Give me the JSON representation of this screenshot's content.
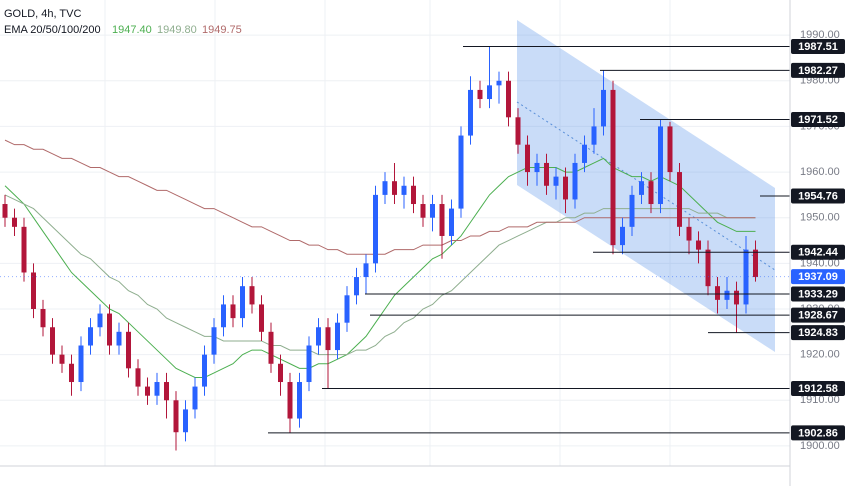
{
  "chart_data": {
    "type": "candlestick",
    "title": "GOLD, 4h, TVC",
    "indicator": "EMA 20/50/100/200",
    "indicator_values": [
      1947.4,
      1949.8,
      1949.75
    ],
    "indicator_value_labels": [
      "1947.40",
      "1949.80",
      "1949.75"
    ],
    "ylim": [
      1895.6,
      1997.7
    ],
    "yticks": [
      {
        "value": 1900,
        "label": "1900.00"
      },
      {
        "value": 1910,
        "label": "1910.00"
      },
      {
        "value": 1920,
        "label": "1920.00"
      },
      {
        "value": 1930,
        "label": "1930.00"
      },
      {
        "value": 1940,
        "label": "1940.00"
      },
      {
        "value": 1950,
        "label": "1950.00"
      },
      {
        "value": 1960,
        "label": "1960.00"
      },
      {
        "value": 1970,
        "label": "1970.00"
      },
      {
        "value": 1980,
        "label": "1980.00"
      },
      {
        "value": 1990,
        "label": "1990.00"
      }
    ],
    "grid": true,
    "up_color": "#2962ff",
    "down_color": "#b2163a",
    "open": [
      1953,
      1950,
      1948,
      1938,
      1930,
      1926,
      1920,
      1918,
      1914,
      1922,
      1926,
      1929,
      1922,
      1925,
      1917,
      1913,
      1911,
      1914,
      1910,
      1903,
      1908,
      1913,
      1920,
      1926,
      1931,
      1928,
      1935,
      1931,
      1925,
      1918,
      1914,
      1906,
      1914,
      1922,
      1926,
      1921,
      1927,
      1933,
      1937,
      1940,
      1955,
      1958,
      1955,
      1957,
      1953,
      1950,
      1953,
      1946,
      1952,
      1968,
      1978,
      1976,
      1979,
      1980,
      1972,
      1966,
      1960,
      1962,
      1957,
      1959,
      1954,
      1962,
      1966,
      1970,
      1978,
      1944,
      1948,
      1955,
      1958,
      1953,
      1970,
      1960,
      1948,
      1945,
      1943,
      1935,
      1932,
      1934,
      1931,
      1943
    ],
    "high": [
      1955,
      1952,
      1950,
      1940,
      1932,
      1928,
      1922,
      1920,
      1924,
      1928,
      1931,
      1931,
      1927,
      1927,
      1919,
      1915,
      1916,
      1916,
      1912,
      1910,
      1915,
      1922,
      1928,
      1933,
      1933,
      1937,
      1937,
      1933,
      1927,
      1920,
      1916,
      1916,
      1924,
      1928,
      1928,
      1929,
      1935,
      1939,
      1942,
      1957,
      1960,
      1962,
      1959,
      1959,
      1955,
      1955,
      1955,
      1954,
      1970,
      1981,
      1980,
      1987.5,
      1982,
      1982,
      1974,
      1968,
      1964,
      1964,
      1961,
      1961,
      1964,
      1968,
      1974,
      1982.3,
      1980,
      1950,
      1957,
      1960,
      1960,
      1971.5,
      1971,
      1962,
      1950,
      1947,
      1945,
      1937,
      1937,
      1936,
      1946,
      1945
    ],
    "low": [
      1948,
      1946,
      1936,
      1928,
      1924,
      1918,
      1916,
      1911,
      1912,
      1920,
      1924,
      1920,
      1920,
      1915,
      1911,
      1909,
      1909,
      1906,
      1899,
      1901,
      1906,
      1911,
      1918,
      1924,
      1926,
      1926,
      1929,
      1923,
      1916,
      1911,
      1902.9,
      1904,
      1912,
      1920,
      1912.6,
      1919,
      1925,
      1931,
      1933.3,
      1938,
      1953,
      1953,
      1952,
      1951,
      1948,
      1947,
      1941,
      1944,
      1950,
      1966,
      1974,
      1974,
      1975,
      1970,
      1964,
      1957,
      1957,
      1955,
      1954,
      1951,
      1952,
      1960,
      1964,
      1968,
      1942,
      1942,
      1946,
      1953,
      1951,
      1951,
      1958,
      1946,
      1942,
      1940,
      1933,
      1929,
      1930,
      1924.8,
      1929,
      1936
    ],
    "close": [
      1950,
      1948,
      1938,
      1930,
      1926,
      1920,
      1918,
      1914,
      1922,
      1926,
      1929,
      1922,
      1925,
      1917,
      1913,
      1911,
      1914,
      1910,
      1903,
      1908,
      1913,
      1920,
      1926,
      1931,
      1928,
      1935,
      1931,
      1925,
      1918,
      1914,
      1906,
      1914,
      1922,
      1926,
      1921,
      1927,
      1933,
      1937,
      1940,
      1955,
      1958,
      1955,
      1957,
      1953,
      1950,
      1953,
      1946,
      1952,
      1968,
      1978,
      1976,
      1979,
      1980,
      1972,
      1966,
      1960,
      1962,
      1957,
      1959,
      1954,
      1962,
      1966,
      1970,
      1978,
      1944,
      1948,
      1955,
      1958,
      1953,
      1970,
      1960,
      1948,
      1945,
      1943,
      1935,
      1932,
      1934,
      1931,
      1943,
      1937
    ],
    "ema": [
      {
        "color": "#4caf50",
        "values": [
          1957,
          1955,
          1953,
          1950,
          1947,
          1944,
          1941,
          1938,
          1936,
          1934,
          1932,
          1930,
          1929,
          1927,
          1925,
          1923,
          1921,
          1919,
          1917,
          1916,
          1915,
          1915,
          1916,
          1917,
          1918,
          1920,
          1921,
          1921,
          1920,
          1919,
          1918,
          1917,
          1917,
          1918,
          1918,
          1919,
          1920,
          1922,
          1924,
          1927,
          1930,
          1933,
          1935,
          1937,
          1939,
          1941,
          1942,
          1944,
          1946,
          1949,
          1952,
          1955,
          1957,
          1959,
          1960,
          1961,
          1961,
          1961,
          1961,
          1960,
          1960,
          1961,
          1962,
          1963,
          1961,
          1960,
          1959,
          1959,
          1958,
          1959,
          1958,
          1957,
          1955,
          1953,
          1951,
          1949,
          1948,
          1947,
          1947,
          1947
        ]
      },
      {
        "color": "#8fae8f",
        "values": [
          1955,
          1954,
          1953,
          1952,
          1950,
          1948,
          1946,
          1944,
          1942,
          1941,
          1939,
          1937,
          1936,
          1934,
          1933,
          1931,
          1930,
          1928,
          1927,
          1926,
          1925,
          1924,
          1924,
          1923,
          1923,
          1923,
          1923,
          1923,
          1922,
          1922,
          1921,
          1921,
          1921,
          1920,
          1920,
          1920,
          1920,
          1921,
          1921,
          1922,
          1924,
          1925,
          1927,
          1928,
          1930,
          1931,
          1933,
          1934,
          1936,
          1938,
          1940,
          1942,
          1944,
          1945,
          1946,
          1947,
          1948,
          1949,
          1949,
          1950,
          1950,
          1951,
          1951,
          1952,
          1952,
          1952,
          1952,
          1952,
          1952,
          1952,
          1952,
          1952,
          1952,
          1951,
          1951,
          1951,
          1950,
          1950,
          1950,
          1950
        ]
      },
      {
        "color": "#b06a6a",
        "values": [
          1967,
          1966,
          1966,
          1965,
          1965,
          1964,
          1963,
          1963,
          1962,
          1961,
          1961,
          1960,
          1959,
          1959,
          1958,
          1957,
          1956,
          1956,
          1955,
          1954,
          1953,
          1952,
          1952,
          1951,
          1950,
          1949,
          1948,
          1948,
          1947,
          1946,
          1945,
          1945,
          1944,
          1944,
          1943,
          1943,
          1942,
          1942,
          1942,
          1942,
          1942,
          1943,
          1943,
          1943,
          1944,
          1944,
          1944,
          1945,
          1945,
          1946,
          1946,
          1947,
          1947,
          1948,
          1948,
          1948,
          1949,
          1949,
          1949,
          1949,
          1949,
          1950,
          1950,
          1950,
          1950,
          1950,
          1950,
          1950,
          1950,
          1950,
          1950,
          1950,
          1950,
          1950,
          1950,
          1950,
          1950,
          1950,
          1950,
          1950
        ]
      }
    ],
    "levels": [
      1987.51,
      1982.27,
      1971.52,
      1954.76,
      1942.44,
      1933.29,
      1928.67,
      1924.83,
      1912.58,
      1902.86
    ],
    "last_price": 1937.09,
    "last_price_color": "#2962ff"
  }
}
